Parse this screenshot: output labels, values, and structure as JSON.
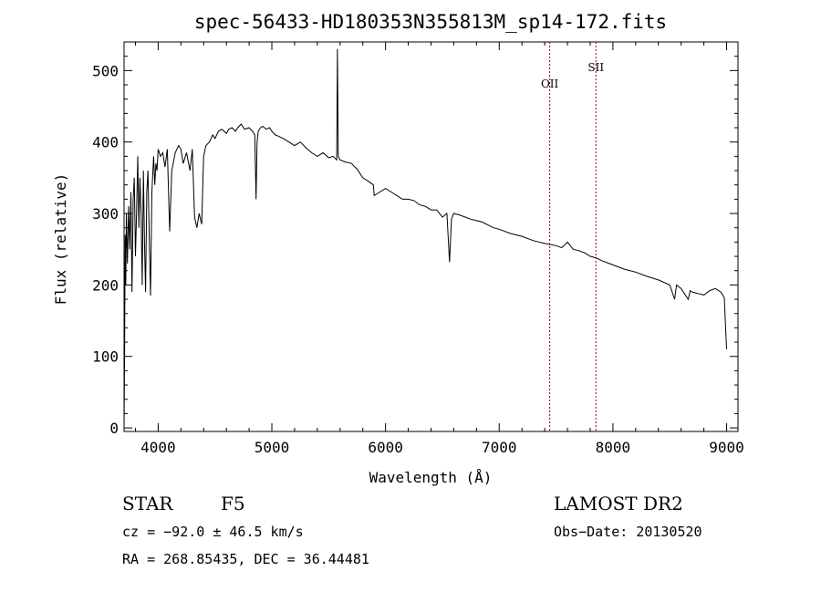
{
  "chart_data": {
    "type": "line",
    "title": "spec-56433-HD180353N355813M_sp14-172.fits",
    "xlabel": "Wavelength (Å)",
    "ylabel": "Flux (relative)",
    "xlim": [
      3700,
      9100
    ],
    "ylim": [
      -5,
      540
    ],
    "xticks": [
      4000,
      5000,
      6000,
      7000,
      8000,
      9000
    ],
    "yticks": [
      0,
      100,
      200,
      300,
      400,
      500
    ],
    "grid": false,
    "series": [
      {
        "color": "#000000",
        "x": [
          3700,
          3705,
          3710,
          3715,
          3720,
          3730,
          3740,
          3750,
          3760,
          3770,
          3780,
          3790,
          3800,
          3810,
          3820,
          3830,
          3840,
          3850,
          3860,
          3870,
          3880,
          3889,
          3900,
          3910,
          3920,
          3933,
          3945,
          3960,
          3970,
          3980,
          3990,
          4000,
          4020,
          4040,
          4060,
          4080,
          4101,
          4120,
          4150,
          4180,
          4200,
          4220,
          4250,
          4280,
          4300,
          4320,
          4340,
          4360,
          4383,
          4400,
          4420,
          4450,
          4480,
          4500,
          4530,
          4560,
          4600,
          4620,
          4650,
          4680,
          4700,
          4730,
          4760,
          4800,
          4830,
          4850,
          4861,
          4870,
          4880,
          4900,
          4920,
          4950,
          4980,
          5000,
          5030,
          5060,
          5100,
          5150,
          5200,
          5250,
          5300,
          5350,
          5400,
          5450,
          5500,
          5540,
          5570,
          5577,
          5584,
          5600,
          5650,
          5700,
          5750,
          5800,
          5850,
          5893,
          5900,
          5950,
          6000,
          6050,
          6100,
          6150,
          6200,
          6250,
          6300,
          6350,
          6400,
          6450,
          6500,
          6540,
          6563,
          6580,
          6600,
          6650,
          6700,
          6750,
          6800,
          6850,
          6900,
          6950,
          7000,
          7100,
          7200,
          7300,
          7400,
          7500,
          7550,
          7600,
          7650,
          7700,
          7750,
          7800,
          7850,
          7900,
          8000,
          8100,
          8200,
          8300,
          8400,
          8500,
          8542,
          8560,
          8600,
          8662,
          8680,
          8700,
          8750,
          8800,
          8850,
          8900,
          8950,
          8980,
          9000
        ],
        "y": [
          0,
          110,
          270,
          200,
          300,
          230,
          310,
          250,
          330,
          190,
          320,
          350,
          240,
          300,
          380,
          280,
          350,
          300,
          200,
          360,
          260,
          190,
          330,
          360,
          280,
          185,
          330,
          380,
          340,
          370,
          360,
          390,
          380,
          385,
          365,
          390,
          275,
          360,
          385,
          395,
          390,
          370,
          385,
          360,
          390,
          295,
          280,
          300,
          285,
          380,
          395,
          400,
          410,
          405,
          415,
          418,
          412,
          418,
          420,
          415,
          420,
          425,
          418,
          420,
          415,
          410,
          320,
          400,
          415,
          420,
          422,
          418,
          420,
          415,
          410,
          408,
          405,
          400,
          395,
          400,
          392,
          385,
          380,
          385,
          378,
          380,
          375,
          530,
          380,
          375,
          372,
          370,
          362,
          350,
          345,
          340,
          325,
          330,
          335,
          330,
          325,
          320,
          320,
          318,
          312,
          310,
          305,
          305,
          295,
          300,
          232,
          292,
          300,
          298,
          295,
          292,
          290,
          288,
          284,
          280,
          278,
          272,
          268,
          262,
          258,
          255,
          252,
          260,
          250,
          248,
          245,
          240,
          238,
          234,
          228,
          222,
          218,
          212,
          207,
          200,
          180,
          200,
          195,
          180,
          192,
          190,
          188,
          186,
          192,
          195,
          190,
          182,
          110
        ]
      }
    ],
    "annotations": [
      {
        "label": "OII",
        "x": 7444
      },
      {
        "label": "SII",
        "x": 7850
      }
    ]
  },
  "info": {
    "object_class": "STAR",
    "subclass": "F5",
    "survey": "LAMOST DR2",
    "velocity": "cz = −92.0 ± 46.5 km/s",
    "obs_date": "Obs−Date: 20130520",
    "coords": "RA = 268.85435, DEC =  36.44481"
  }
}
